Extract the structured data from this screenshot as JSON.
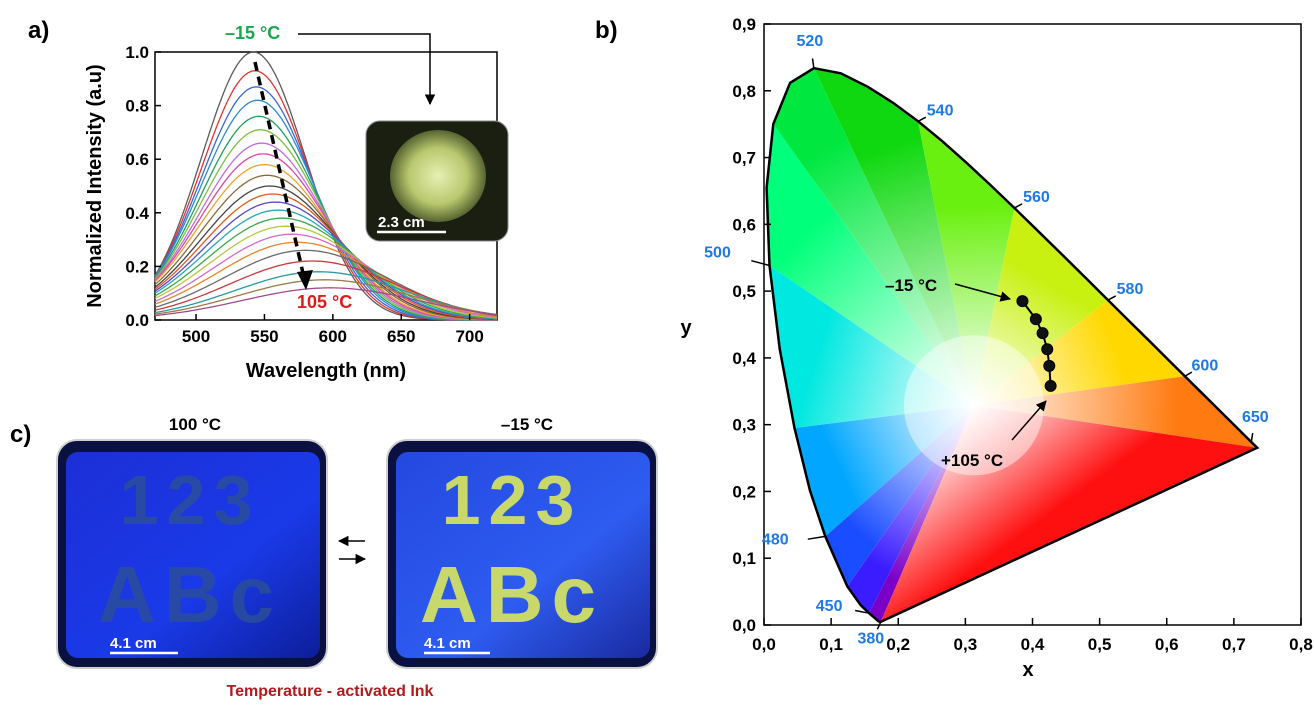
{
  "panels": {
    "a_label": "a)",
    "b_label": "b)",
    "c_label": "c)"
  },
  "chart_data": [
    {
      "type": "line",
      "panel": "a",
      "xlabel": "Wavelength (nm)",
      "ylabel": "Normalized Intensity (a.u)",
      "xlim": [
        470,
        720
      ],
      "ylim": [
        0.0,
        1.0
      ],
      "x_ticks": [
        "500",
        "550",
        "600",
        "650",
        "700"
      ],
      "y_ticks": [
        "0.0",
        "0.2",
        "0.4",
        "0.6",
        "0.8",
        "1.0"
      ],
      "annotations": {
        "top_temp": "–15 °C",
        "bottom_temp": "105 °C",
        "inset_scale": "2.3 cm",
        "top_temp_color": "#1aa84f",
        "bottom_temp_color": "#e01b1b"
      },
      "series": [
        {
          "peak_x": 542,
          "peak_y": 1.0,
          "color": "#5b5b5b"
        },
        {
          "peak_x": 543,
          "peak_y": 0.93,
          "color": "#e8332e"
        },
        {
          "peak_x": 544,
          "peak_y": 0.87,
          "color": "#3a66d4"
        },
        {
          "peak_x": 545,
          "peak_y": 0.82,
          "color": "#2c8ad8"
        },
        {
          "peak_x": 546,
          "peak_y": 0.76,
          "color": "#1fa05a"
        },
        {
          "peak_x": 547,
          "peak_y": 0.71,
          "color": "#7cc042"
        },
        {
          "peak_x": 548,
          "peak_y": 0.66,
          "color": "#c16be0"
        },
        {
          "peak_x": 549,
          "peak_y": 0.62,
          "color": "#d84aa8"
        },
        {
          "peak_x": 550,
          "peak_y": 0.58,
          "color": "#f0a22a"
        },
        {
          "peak_x": 552,
          "peak_y": 0.54,
          "color": "#8a6a3a"
        },
        {
          "peak_x": 554,
          "peak_y": 0.5,
          "color": "#444444"
        },
        {
          "peak_x": 556,
          "peak_y": 0.47,
          "color": "#e45a1c"
        },
        {
          "peak_x": 558,
          "peak_y": 0.44,
          "color": "#5a48c8"
        },
        {
          "peak_x": 560,
          "peak_y": 0.41,
          "color": "#22a8b8"
        },
        {
          "peak_x": 563,
          "peak_y": 0.38,
          "color": "#3aa84a"
        },
        {
          "peak_x": 566,
          "peak_y": 0.35,
          "color": "#b8c83a"
        },
        {
          "peak_x": 570,
          "peak_y": 0.32,
          "color": "#d46ac8"
        },
        {
          "peak_x": 574,
          "peak_y": 0.29,
          "color": "#e8862a"
        },
        {
          "peak_x": 580,
          "peak_y": 0.26,
          "color": "#6a6a6a"
        },
        {
          "peak_x": 585,
          "peak_y": 0.22,
          "color": "#c83a3a"
        },
        {
          "peak_x": 590,
          "peak_y": 0.18,
          "color": "#2a9a9a"
        },
        {
          "peak_x": 594,
          "peak_y": 0.15,
          "color": "#9a7a48"
        },
        {
          "peak_x": 598,
          "peak_y": 0.12,
          "color": "#a04a8a"
        }
      ]
    },
    {
      "type": "scatter",
      "panel": "b",
      "xlabel": "x",
      "ylabel": "y",
      "xlim": [
        0.0,
        0.8
      ],
      "ylim": [
        0.0,
        0.9
      ],
      "x_ticks": [
        "0,0",
        "0,1",
        "0,2",
        "0,3",
        "0,4",
        "0,5",
        "0,6",
        "0,7",
        "0,8"
      ],
      "y_ticks": [
        "0,0",
        "0,1",
        "0,2",
        "0,3",
        "0,4",
        "0,5",
        "0,6",
        "0,7",
        "0,8",
        "0,9"
      ],
      "points": [
        {
          "x": 0.385,
          "y": 0.485
        },
        {
          "x": 0.405,
          "y": 0.458
        },
        {
          "x": 0.415,
          "y": 0.437
        },
        {
          "x": 0.422,
          "y": 0.413
        },
        {
          "x": 0.425,
          "y": 0.388
        },
        {
          "x": 0.427,
          "y": 0.358
        }
      ],
      "wavelength_labels": [
        {
          "text": "380",
          "x": 0.1741,
          "y": 0.005
        },
        {
          "text": "450",
          "x": 0.1566,
          "y": 0.0177
        },
        {
          "text": "480",
          "x": 0.0913,
          "y": 0.1327
        },
        {
          "text": "500",
          "x": 0.0082,
          "y": 0.5384
        },
        {
          "text": "520",
          "x": 0.0743,
          "y": 0.8338
        },
        {
          "text": "540",
          "x": 0.2296,
          "y": 0.7543
        },
        {
          "text": "560",
          "x": 0.3731,
          "y": 0.6245
        },
        {
          "text": "580",
          "x": 0.5125,
          "y": 0.4866
        },
        {
          "text": "600",
          "x": 0.627,
          "y": 0.3725
        },
        {
          "text": "650",
          "x": 0.726,
          "y": 0.274
        }
      ],
      "annotations": {
        "start_temp": "–15 °C",
        "end_temp": "+105 °C"
      }
    }
  ],
  "panel_c": {
    "left_title": "100 °C",
    "right_title": "–15 °C",
    "left_scale": "4.1 cm",
    "right_scale": "4.1 cm",
    "photo_text_line1": "123",
    "photo_text_line2": "ABc",
    "caption": "Temperature - activated Ink",
    "caption_color": "#b01c1c"
  }
}
